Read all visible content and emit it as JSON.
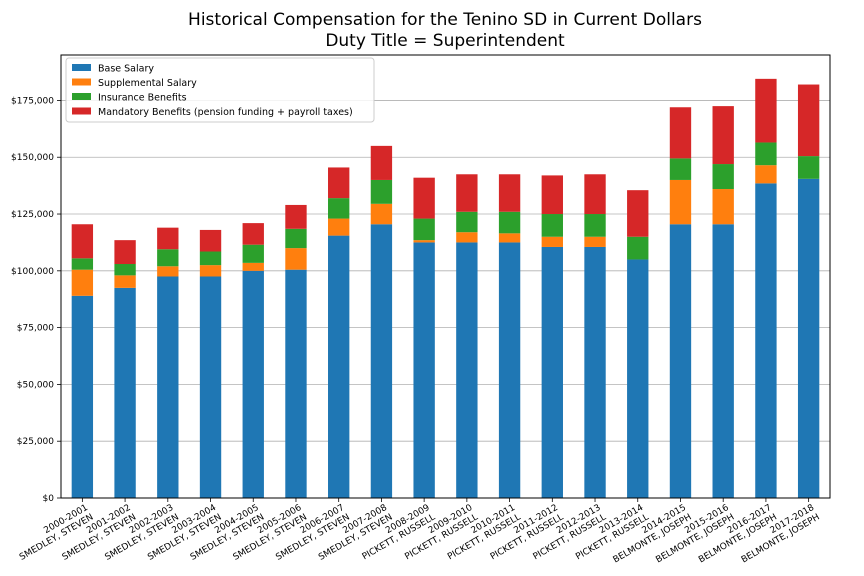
{
  "chart_data": {
    "type": "bar",
    "stacked": true,
    "title": "Historical Compensation for the Tenino SD in Current Dollars",
    "subtitle": "Duty Title = Superintendent",
    "xlabel": "",
    "ylabel": "",
    "ylim": [
      0,
      195000
    ],
    "yticks": [
      "$0",
      "$25,000",
      "$50,000",
      "$75,000",
      "$100,000",
      "$125,000",
      "$150,000",
      "$175,000"
    ],
    "grid": "horizontal",
    "legend_position": "top-left",
    "categories": [
      [
        "2000-2001",
        "SMEDLEY, STEVEN"
      ],
      [
        "2001-2002",
        "SMEDLEY, STEVEN"
      ],
      [
        "2002-2003",
        "SMEDLEY, STEVEN"
      ],
      [
        "2003-2004",
        "SMEDLEY, STEVEN"
      ],
      [
        "2004-2005",
        "SMEDLEY, STEVEN"
      ],
      [
        "2005-2006",
        "SMEDLEY, STEVEN"
      ],
      [
        "2006-2007",
        "SMEDLEY, STEVEN"
      ],
      [
        "2007-2008",
        "SMEDLEY, STEVEN"
      ],
      [
        "2008-2009",
        "PICKETT, RUSSELL"
      ],
      [
        "2009-2010",
        "PICKETT, RUSSELL"
      ],
      [
        "2010-2011",
        "PICKETT, RUSSELL"
      ],
      [
        "2011-2012",
        "PICKETT, RUSSELL"
      ],
      [
        "2012-2013",
        "PICKETT, RUSSELL"
      ],
      [
        "2013-2014",
        "PICKETT, RUSSELL"
      ],
      [
        "2014-2015",
        "BELMONTE, JOSEPH"
      ],
      [
        "2015-2016",
        "BELMONTE, JOSEPH"
      ],
      [
        "2016-2017",
        "BELMONTE, JOSEPH"
      ],
      [
        "2017-2018",
        "BELMONTE, JOSEPH"
      ]
    ],
    "series": [
      {
        "name": "Base Salary",
        "color": "#1f77b4",
        "values": [
          89000,
          92500,
          97500,
          97500,
          100000,
          100500,
          115500,
          120500,
          112500,
          112500,
          112500,
          110500,
          110500,
          105000,
          120500,
          120500,
          138500,
          140500
        ]
      },
      {
        "name": "Supplemental Salary",
        "color": "#ff7f0e",
        "values": [
          11500,
          5500,
          4500,
          5000,
          3500,
          9500,
          7500,
          9000,
          1000,
          4500,
          4000,
          4500,
          4500,
          0,
          19500,
          15500,
          8000,
          0
        ]
      },
      {
        "name": "Insurance Benefits",
        "color": "#2ca02c",
        "values": [
          5000,
          5000,
          7500,
          6000,
          8000,
          8500,
          9000,
          10500,
          9500,
          9000,
          9500,
          10000,
          10000,
          10000,
          9500,
          11000,
          10000,
          10000
        ]
      },
      {
        "name": "Mandatory Benefits (pension funding + payroll taxes)",
        "color": "#d62728",
        "values": [
          15000,
          10500,
          9500,
          9500,
          9500,
          10500,
          13500,
          15000,
          18000,
          16500,
          16500,
          17000,
          17500,
          20500,
          22500,
          25500,
          28000,
          31500
        ]
      }
    ]
  }
}
